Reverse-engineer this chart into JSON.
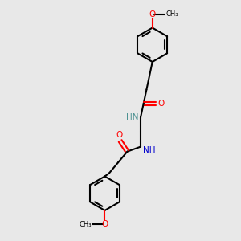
{
  "background_color": "#e8e8e8",
  "bond_color": "#000000",
  "nitrogen_color": "#0000cd",
  "oxygen_color": "#ff0000",
  "teal_color": "#4a9090",
  "line_width": 1.5,
  "figsize": [
    3.0,
    3.0
  ],
  "dpi": 100,
  "xlim": [
    0,
    10
  ],
  "ylim": [
    0,
    10
  ]
}
